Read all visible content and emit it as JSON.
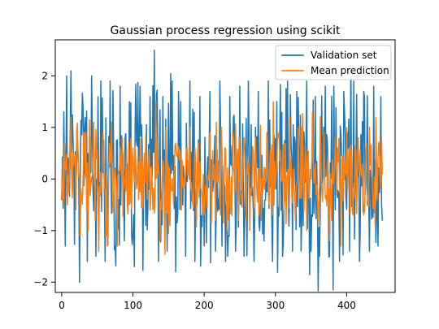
{
  "chart_data": {
    "type": "line",
    "title": "Gaussian process regression using scikit",
    "xlabel": "",
    "ylabel": "",
    "xlim": [
      -9,
      468
    ],
    "ylim": [
      -2.2,
      2.7
    ],
    "x_ticks": [
      0,
      100,
      200,
      300,
      400
    ],
    "y_ticks": [
      -2,
      -1,
      0,
      1,
      2
    ],
    "y_tick_labels": [
      "−2",
      "−1",
      "0",
      "1",
      "2"
    ],
    "grid": false,
    "legend_position": "top-right",
    "series": [
      {
        "name": "Validation set",
        "color": "#1f77b4",
        "n_points": 451,
        "amplitude": 0.85,
        "seed": 12345,
        "anchors": [
          [
            0,
            -0.4
          ],
          [
            3,
            1.3
          ],
          [
            5,
            -1.3
          ],
          [
            7,
            2.0
          ],
          [
            13,
            2.1
          ],
          [
            20,
            -0.2
          ],
          [
            25,
            -2.0
          ],
          [
            30,
            1.4
          ],
          [
            36,
            -1.6
          ],
          [
            42,
            2.0
          ],
          [
            48,
            -1.5
          ],
          [
            55,
            1.9
          ],
          [
            61,
            -1.6
          ],
          [
            68,
            1.9
          ],
          [
            75,
            -1.3
          ],
          [
            82,
            1.8
          ],
          [
            88,
            -1.2
          ],
          [
            95,
            1.5
          ],
          [
            102,
            -1.7
          ],
          [
            110,
            1.8
          ],
          [
            118,
            -0.9
          ],
          [
            124,
            1.6
          ],
          [
            130,
            2.5
          ],
          [
            136,
            -1.6
          ],
          [
            142,
            1.6
          ],
          [
            148,
            -1.4
          ],
          [
            155,
            1.9
          ],
          [
            160,
            -1.8
          ],
          [
            167,
            1.5
          ],
          [
            174,
            -1.5
          ],
          [
            180,
            1.9
          ],
          [
            187,
            -1.6
          ],
          [
            194,
            1.6
          ],
          [
            200,
            -1.3
          ],
          [
            208,
            1.7
          ],
          [
            216,
            -1.4
          ],
          [
            222,
            1.9
          ],
          [
            230,
            -1.6
          ],
          [
            236,
            1.6
          ],
          [
            244,
            -1.4
          ],
          [
            250,
            1.8
          ],
          [
            256,
            -1.5
          ],
          [
            262,
            1.9
          ],
          [
            270,
            -1.6
          ],
          [
            276,
            1.7
          ],
          [
            284,
            -1.2
          ],
          [
            290,
            1.9
          ],
          [
            296,
            -1.6
          ],
          [
            302,
            1.5
          ],
          [
            310,
            -1.5
          ],
          [
            317,
            1.9
          ],
          [
            324,
            -1.4
          ],
          [
            330,
            1.7
          ],
          [
            336,
            -1.4
          ],
          [
            344,
            1.9
          ],
          [
            350,
            -1.4
          ],
          [
            356,
            1.6
          ],
          [
            362,
            -1.5
          ],
          [
            370,
            1.8
          ],
          [
            376,
            -1.5
          ],
          [
            382,
            1.8
          ],
          [
            390,
            -1.6
          ],
          [
            396,
            1.7
          ],
          [
            404,
            -1.4
          ],
          [
            410,
            1.9
          ],
          [
            418,
            -1.6
          ],
          [
            424,
            1.7
          ],
          [
            432,
            -1.4
          ],
          [
            438,
            1.8
          ],
          [
            444,
            -1.3
          ],
          [
            448,
            1.6
          ],
          [
            450,
            -0.8
          ]
        ]
      },
      {
        "name": "Mean prediction",
        "color": "#ff7f0e",
        "n_points": 451,
        "amplitude": 0.45,
        "seed": 67890,
        "anchors": [
          [
            0,
            0.0
          ],
          [
            4,
            0.7
          ],
          [
            8,
            -0.5
          ],
          [
            13,
            1.2
          ],
          [
            20,
            -0.6
          ],
          [
            26,
            -1.1
          ],
          [
            31,
            0.9
          ],
          [
            37,
            -1.0
          ],
          [
            45,
            1.1
          ],
          [
            52,
            -1.4
          ],
          [
            58,
            0.9
          ],
          [
            64,
            -1.3
          ],
          [
            70,
            1.1
          ],
          [
            78,
            -1.3
          ],
          [
            85,
            0.8
          ],
          [
            92,
            -0.5
          ],
          [
            100,
            0.6
          ],
          [
            108,
            -0.4
          ],
          [
            116,
            0.5
          ],
          [
            124,
            -0.6
          ],
          [
            132,
            1.5
          ],
          [
            138,
            -1.2
          ],
          [
            146,
            1.0
          ],
          [
            152,
            -0.9
          ],
          [
            160,
            0.7
          ],
          [
            168,
            -0.6
          ],
          [
            176,
            0.6
          ],
          [
            184,
            -0.5
          ],
          [
            192,
            0.7
          ],
          [
            200,
            -0.7
          ],
          [
            208,
            0.9
          ],
          [
            216,
            -0.8
          ],
          [
            224,
            1.0
          ],
          [
            232,
            -1.0
          ],
          [
            240,
            0.9
          ],
          [
            248,
            -0.8
          ],
          [
            256,
            0.8
          ],
          [
            264,
            -1.0
          ],
          [
            272,
            0.8
          ],
          [
            280,
            -0.8
          ],
          [
            288,
            0.9
          ],
          [
            296,
            -0.7
          ],
          [
            304,
            0.8
          ],
          [
            312,
            -0.6
          ],
          [
            320,
            1.2
          ],
          [
            328,
            -0.8
          ],
          [
            336,
            1.0
          ],
          [
            344,
            -1.0
          ],
          [
            352,
            1.3
          ],
          [
            360,
            -0.9
          ],
          [
            368,
            0.9
          ],
          [
            376,
            -1.2
          ],
          [
            384,
            0.8
          ],
          [
            392,
            -1.3
          ],
          [
            400,
            1.0
          ],
          [
            408,
            -0.6
          ],
          [
            416,
            0.8
          ],
          [
            424,
            -0.7
          ],
          [
            432,
            1.0
          ],
          [
            440,
            -0.9
          ],
          [
            446,
            0.6
          ],
          [
            450,
            0.1
          ]
        ]
      }
    ]
  }
}
